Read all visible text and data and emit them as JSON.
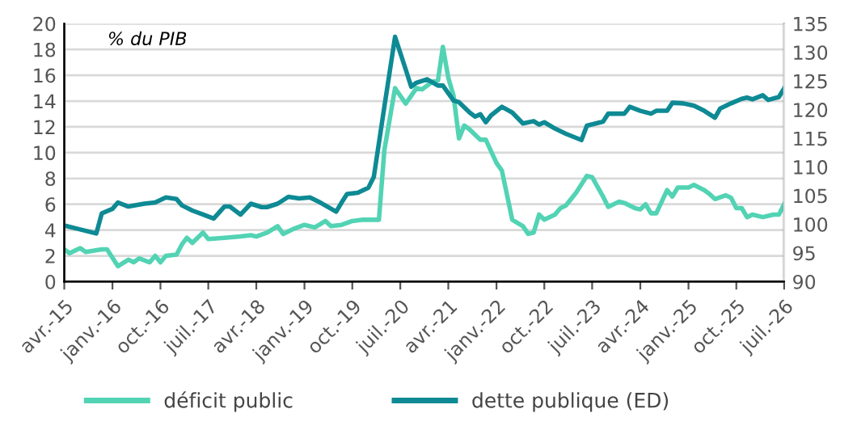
{
  "chart_data": {
    "type": "line",
    "annotations": [
      "% du PIB"
    ],
    "xlim": [
      "2015-04",
      "2026-07"
    ],
    "xticks": [
      {
        "value": "2015-04",
        "label": "avr.-15"
      },
      {
        "value": "2016-01",
        "label": "janv.-16"
      },
      {
        "value": "2016-10",
        "label": "oct.-16"
      },
      {
        "value": "2017-07",
        "label": "juil.-17"
      },
      {
        "value": "2018-04",
        "label": "avr.-18"
      },
      {
        "value": "2019-01",
        "label": "janv.-19"
      },
      {
        "value": "2019-10",
        "label": "oct.-19"
      },
      {
        "value": "2020-07",
        "label": "juil.-20"
      },
      {
        "value": "2021-04",
        "label": "avr.-21"
      },
      {
        "value": "2022-01",
        "label": "janv.-22"
      },
      {
        "value": "2022-10",
        "label": "oct.-22"
      },
      {
        "value": "2023-07",
        "label": "juil.-23"
      },
      {
        "value": "2024-04",
        "label": "avr.-24"
      },
      {
        "value": "2025-01",
        "label": "janv.-25"
      },
      {
        "value": "2025-10",
        "label": "oct.-25"
      },
      {
        "value": "2026-07",
        "label": "juil.-26"
      }
    ],
    "ylim": [
      0,
      20
    ],
    "yticks": [
      0,
      2,
      4,
      6,
      8,
      10,
      12,
      14,
      16,
      18,
      20
    ],
    "y2lim": [
      90,
      135
    ],
    "y2ticks": [
      90,
      95,
      100,
      105,
      110,
      115,
      120,
      125,
      130,
      135
    ],
    "grid": "y",
    "legend": "bottom",
    "line_style": "solid",
    "series": [
      {
        "name": "déficit public",
        "color": "#52d3b4",
        "x": [
          "2015-04",
          "2015-05",
          "2015-07",
          "2015-08",
          "2015-11",
          "2015-12",
          "2016-02",
          "2016-04",
          "2016-05",
          "2016-06",
          "2016-08",
          "2016-09",
          "2016-10",
          "2016-11",
          "2017-01",
          "2017-02",
          "2017-03",
          "2017-04",
          "2017-06",
          "2017-07",
          "2017-10",
          "2018-01",
          "2018-03",
          "2018-04",
          "2018-06",
          "2018-08",
          "2018-09",
          "2018-11",
          "2019-01",
          "2019-03",
          "2019-05",
          "2019-06",
          "2019-08",
          "2019-10",
          "2019-12",
          "2020-03",
          "2020-04",
          "2020-06",
          "2020-08",
          "2020-10",
          "2020-11",
          "2021-01",
          "2021-02",
          "2021-03",
          "2021-04",
          "2021-05",
          "2021-06",
          "2021-07",
          "2021-08",
          "2021-10",
          "2021-11",
          "2022-01",
          "2022-02",
          "2022-04",
          "2022-06",
          "2022-07",
          "2022-08",
          "2022-09",
          "2022-10",
          "2022-12",
          "2023-01",
          "2023-02",
          "2023-04",
          "2023-06",
          "2023-07",
          "2023-09",
          "2023-10",
          "2023-12",
          "2024-01",
          "2024-03",
          "2024-04",
          "2024-05",
          "2024-06",
          "2024-07",
          "2024-09",
          "2024-10",
          "2024-11",
          "2025-01",
          "2025-02",
          "2025-04",
          "2025-05",
          "2025-06",
          "2025-08",
          "2025-09",
          "2025-10",
          "2025-11",
          "2025-12",
          "2026-01",
          "2026-03",
          "2026-05",
          "2026-06",
          "2026-07"
        ],
        "values": [
          2.5,
          2.2,
          2.6,
          2.3,
          2.5,
          2.5,
          1.2,
          1.7,
          1.5,
          1.8,
          1.5,
          2.0,
          1.5,
          2.0,
          2.1,
          2.9,
          3.4,
          3.0,
          3.8,
          3.3,
          3.4,
          3.5,
          3.6,
          3.5,
          3.8,
          4.3,
          3.7,
          4.1,
          4.4,
          4.2,
          4.7,
          4.3,
          4.4,
          4.7,
          4.8,
          4.8,
          10.2,
          15.0,
          13.8,
          15.0,
          14.9,
          15.5,
          15.6,
          18.2,
          15.8,
          14.4,
          11.1,
          12.1,
          11.8,
          11.0,
          11.0,
          9.2,
          8.6,
          4.8,
          4.3,
          3.7,
          3.8,
          5.2,
          4.8,
          5.2,
          5.7,
          5.9,
          6.9,
          8.2,
          8.1,
          6.6,
          5.8,
          6.2,
          6.1,
          5.7,
          5.6,
          6.0,
          5.3,
          5.3,
          7.1,
          6.6,
          7.3,
          7.3,
          7.5,
          7.1,
          6.8,
          6.4,
          6.7,
          6.5,
          5.7,
          5.7,
          5.0,
          5.2,
          5.0,
          5.2,
          5.2,
          6.0
        ]
      },
      {
        "name": "dette publique (ED)",
        "color": "#0e8a94",
        "axis": "y2",
        "x": [
          "2015-04",
          "2015-07",
          "2015-10",
          "2015-11",
          "2016-01",
          "2016-02",
          "2016-04",
          "2016-07",
          "2016-09",
          "2016-11",
          "2017-01",
          "2017-02",
          "2017-04",
          "2017-06",
          "2017-08",
          "2017-10",
          "2017-11",
          "2018-01",
          "2018-03",
          "2018-05",
          "2018-06",
          "2018-08",
          "2018-10",
          "2018-12",
          "2019-02",
          "2019-04",
          "2019-07",
          "2019-08",
          "2019-09",
          "2019-11",
          "2020-01",
          "2020-02",
          "2020-04",
          "2020-06",
          "2020-08",
          "2020-09",
          "2020-10",
          "2020-12",
          "2021-02",
          "2021-03",
          "2021-05",
          "2021-06",
          "2021-08",
          "2021-09",
          "2021-10",
          "2021-11",
          "2021-12",
          "2022-02",
          "2022-04",
          "2022-06",
          "2022-08",
          "2022-09",
          "2022-10",
          "2022-12",
          "2023-02",
          "2023-05",
          "2023-06",
          "2023-09",
          "2023-10",
          "2024-01",
          "2024-02",
          "2024-04",
          "2024-06",
          "2024-07",
          "2024-09",
          "2024-10",
          "2024-12",
          "2025-02",
          "2025-04",
          "2025-06",
          "2025-07",
          "2025-09",
          "2025-11",
          "2025-12",
          "2026-01",
          "2026-03",
          "2026-04",
          "2026-06",
          "2026-07"
        ],
        "values": [
          99.8,
          99.1,
          98.4,
          101.9,
          102.7,
          103.8,
          103.1,
          103.6,
          103.8,
          104.7,
          104.4,
          103.3,
          102.4,
          101.7,
          101.0,
          103.1,
          103.1,
          101.7,
          103.6,
          103.0,
          103.0,
          103.6,
          104.8,
          104.5,
          104.7,
          103.8,
          102.2,
          103.8,
          105.3,
          105.5,
          106.4,
          108.3,
          120.5,
          132.7,
          127.0,
          124.0,
          124.7,
          125.3,
          124.2,
          124.2,
          121.6,
          121.3,
          119.5,
          118.8,
          119.2,
          117.8,
          119.0,
          120.5,
          119.5,
          117.6,
          118.0,
          117.4,
          117.8,
          116.7,
          115.8,
          114.7,
          117.2,
          117.9,
          119.3,
          119.3,
          120.5,
          119.8,
          119.3,
          119.8,
          119.8,
          121.2,
          121.1,
          120.7,
          119.8,
          118.6,
          120.2,
          121.1,
          121.9,
          122.1,
          121.8,
          122.5,
          121.7,
          122.2,
          123.7
        ]
      }
    ]
  }
}
